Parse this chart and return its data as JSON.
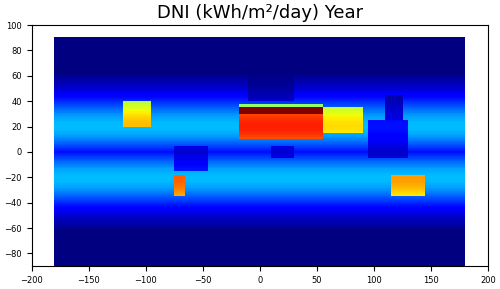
{
  "title": "DNI (kWh/m²/day) Year",
  "title_fontsize": 13,
  "xlim": [
    -200,
    200
  ],
  "ylim": [
    -90,
    100
  ],
  "xticks": [
    -200,
    -150,
    -100,
    -50,
    0,
    50,
    100,
    150,
    200
  ],
  "yticks": [
    -80,
    -60,
    -40,
    -20,
    0,
    20,
    40,
    60,
    80,
    100
  ],
  "background_color": "#ffffff",
  "map_background": "#ffffff",
  "ocean_color": "#ffffff",
  "colormap": "jet",
  "vmin": 0,
  "vmax": 9,
  "figsize": [
    5.0,
    2.89
  ],
  "dpi": 100
}
